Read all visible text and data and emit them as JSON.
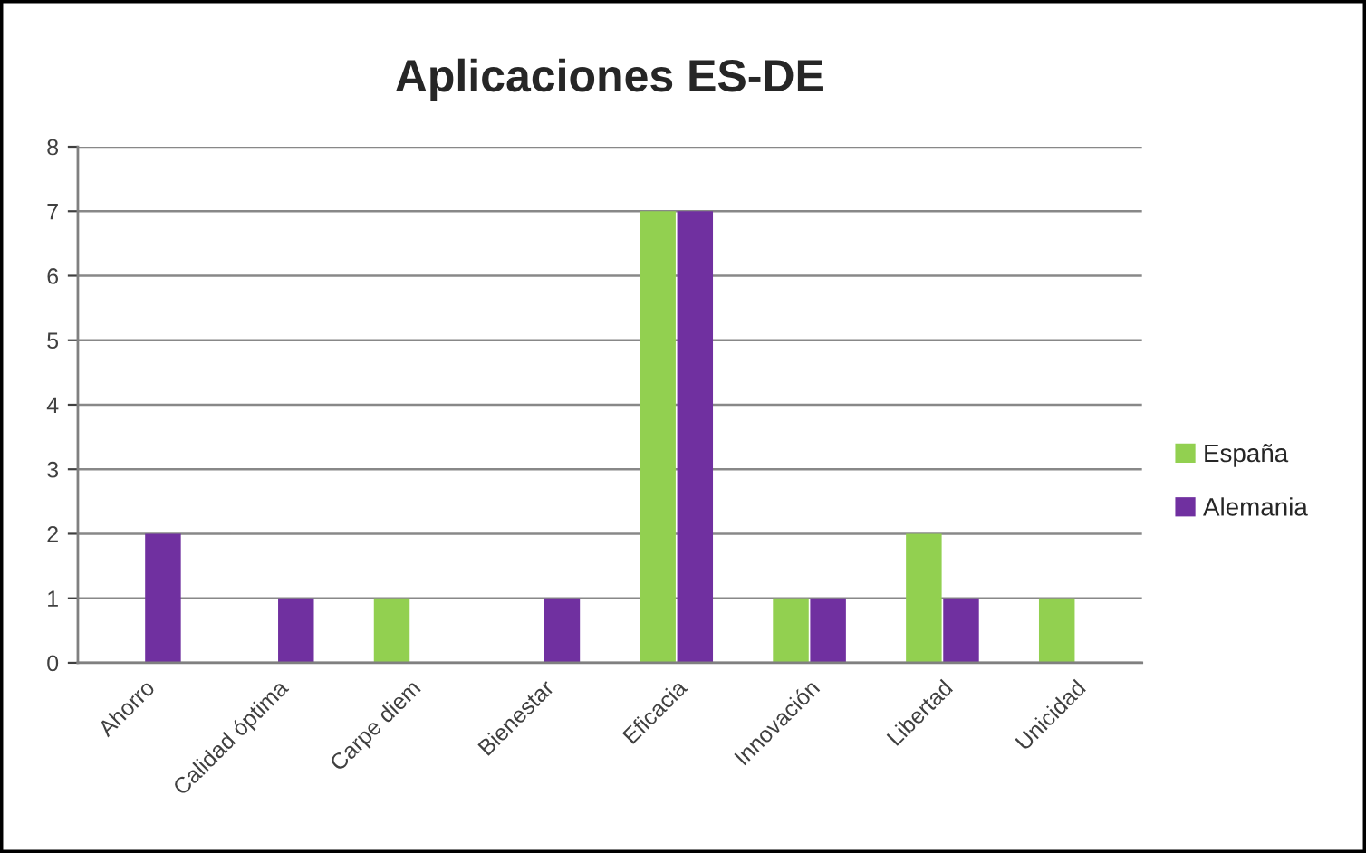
{
  "chart_data": {
    "type": "bar",
    "title": "Aplicaciones ES-DE",
    "categories": [
      "Ahorro",
      "Calidad óptima",
      "Carpe diem",
      "Bienestar",
      "Eficacia",
      "Innovación",
      "Libertad",
      "Unicidad"
    ],
    "series": [
      {
        "name": "España",
        "color": "#92d050",
        "values": [
          0,
          0,
          1,
          0,
          7,
          1,
          2,
          1
        ]
      },
      {
        "name": "Alemania",
        "color": "#7030a0",
        "values": [
          2,
          1,
          0,
          1,
          7,
          1,
          1,
          0
        ]
      }
    ],
    "ylim": [
      0,
      8
    ],
    "yticks": [
      0,
      1,
      2,
      3,
      4,
      5,
      6,
      7,
      8
    ],
    "grid": "y",
    "legend": "right"
  }
}
